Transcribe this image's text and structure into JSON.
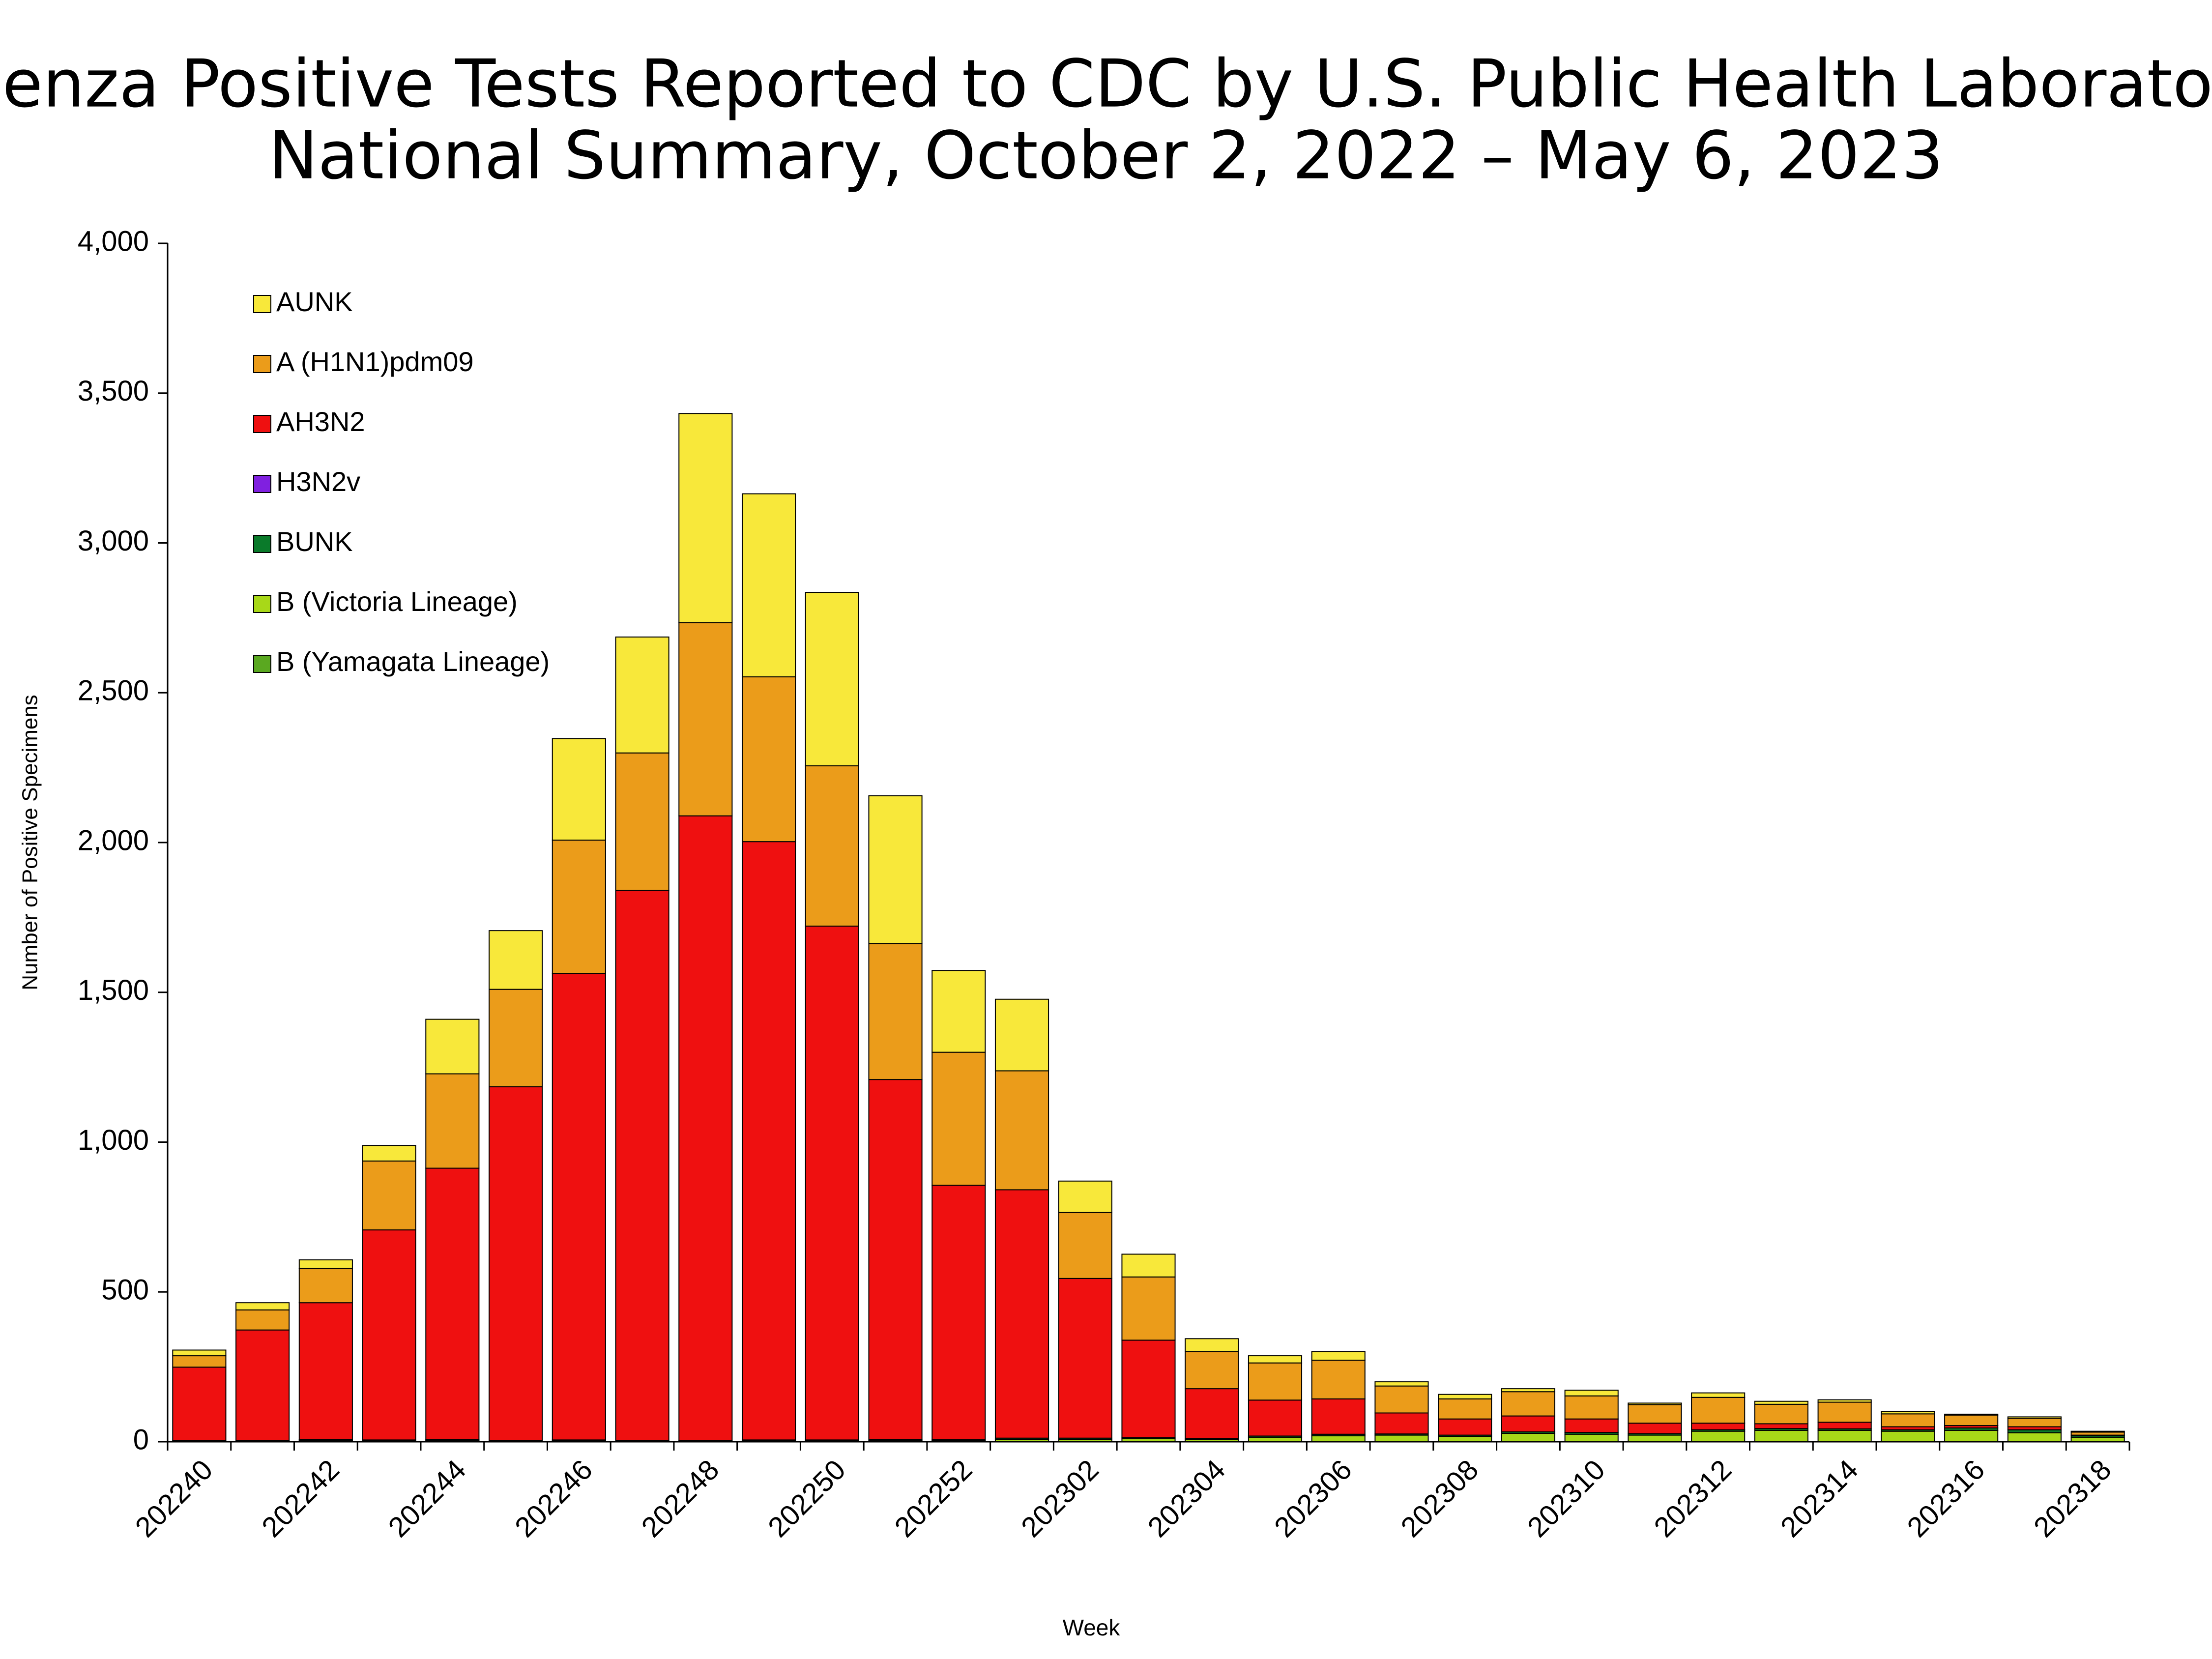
{
  "chart_data": {
    "type": "stacked_bar",
    "title": "Influenza Positive Tests Reported to CDC by U.S. Public Health Laboratories,",
    "subtitle": "National Summary, October 2, 2022 – May 6, 2023",
    "x_label": "Week",
    "y_label": "Number of Positive Specimens",
    "categories": [
      "202240",
      null,
      "202242",
      null,
      "202244",
      null,
      "202246",
      null,
      "202248",
      null,
      "202250",
      null,
      "202252",
      null,
      "202302",
      null,
      "202304",
      null,
      "202306",
      null,
      "202308",
      null,
      "202310",
      null,
      "202312",
      null,
      "202314",
      null,
      "202316",
      null,
      "202318"
    ],
    "series": [
      {
        "name": "AUNK",
        "color": "#f8e83a",
        "values": [
          19,
          24,
          29,
          52,
          182,
          196,
          339,
          387,
          698,
          611,
          579,
          493,
          273,
          239,
          105,
          76,
          43,
          24,
          29,
          14,
          15,
          10,
          19,
          5,
          15,
          10,
          8,
          8,
          3,
          5,
          3
        ]
      },
      {
        "name": "A (H1N1)pdm09",
        "color": "#eb9c1a",
        "values": [
          38,
          67,
          114,
          230,
          315,
          325,
          445,
          459,
          645,
          550,
          535,
          454,
          444,
          397,
          220,
          211,
          124,
          124,
          129,
          90,
          67,
          81,
          77,
          62,
          86,
          65,
          67,
          43,
          35,
          28,
          10
        ]
      },
      {
        "name": "AH3N2",
        "color": "#ef1010",
        "values": [
          245,
          369,
          456,
          701,
          905,
          1181,
          1557,
          1836,
          2085,
          1997,
          1715,
          1201,
          849,
          829,
          533,
          325,
          166,
          120,
          118,
          70,
          54,
          53,
          45,
          35,
          22,
          16,
          22,
          10,
          8,
          10,
          2
        ]
      },
      {
        "name": "H3N2v",
        "color": "#8020e0",
        "values": [
          0,
          0,
          0,
          0,
          0,
          0,
          0,
          0,
          0,
          0,
          0,
          0,
          0,
          0,
          0,
          0,
          0,
          0,
          0,
          0,
          0,
          0,
          0,
          0,
          0,
          0,
          0,
          0,
          0,
          0,
          0
        ]
      },
      {
        "name": "BUNK",
        "color": "#0a7a2a",
        "values": [
          2,
          2,
          4,
          3,
          4,
          2,
          3,
          2,
          2,
          3,
          3,
          4,
          3,
          4,
          4,
          4,
          3,
          4,
          5,
          4,
          4,
          5,
          6,
          5,
          5,
          6,
          5,
          5,
          8,
          10,
          5
        ]
      },
      {
        "name": "B (Victoria Lineage)",
        "color": "#a8d818",
        "values": [
          2,
          2,
          4,
          3,
          4,
          2,
          3,
          2,
          2,
          3,
          3,
          4,
          4,
          8,
          8,
          10,
          8,
          15,
          20,
          22,
          18,
          28,
          25,
          22,
          35,
          38,
          38,
          35,
          38,
          30,
          15
        ]
      },
      {
        "name": "B (Yamagata Lineage)",
        "color": "#5aa820",
        "values": [
          0,
          0,
          0,
          0,
          0,
          0,
          0,
          0,
          0,
          0,
          0,
          0,
          0,
          0,
          0,
          0,
          0,
          0,
          0,
          0,
          0,
          0,
          0,
          0,
          0,
          0,
          0,
          0,
          0,
          0,
          0
        ]
      }
    ],
    "ylim": [
      0,
      4000
    ],
    "yticks": [
      0,
      500,
      {
        "value": 1000,
        "label": "1,000"
      },
      {
        "value": 1500,
        "label": "1,500"
      },
      {
        "value": 2000,
        "label": "2,000"
      },
      {
        "value": 2500,
        "label": "2,500"
      },
      {
        "value": 3000,
        "label": "3,000"
      },
      {
        "value": 3500,
        "label": "3,500"
      },
      {
        "value": 4000,
        "label": "4,000"
      }
    ],
    "grid": false
  }
}
